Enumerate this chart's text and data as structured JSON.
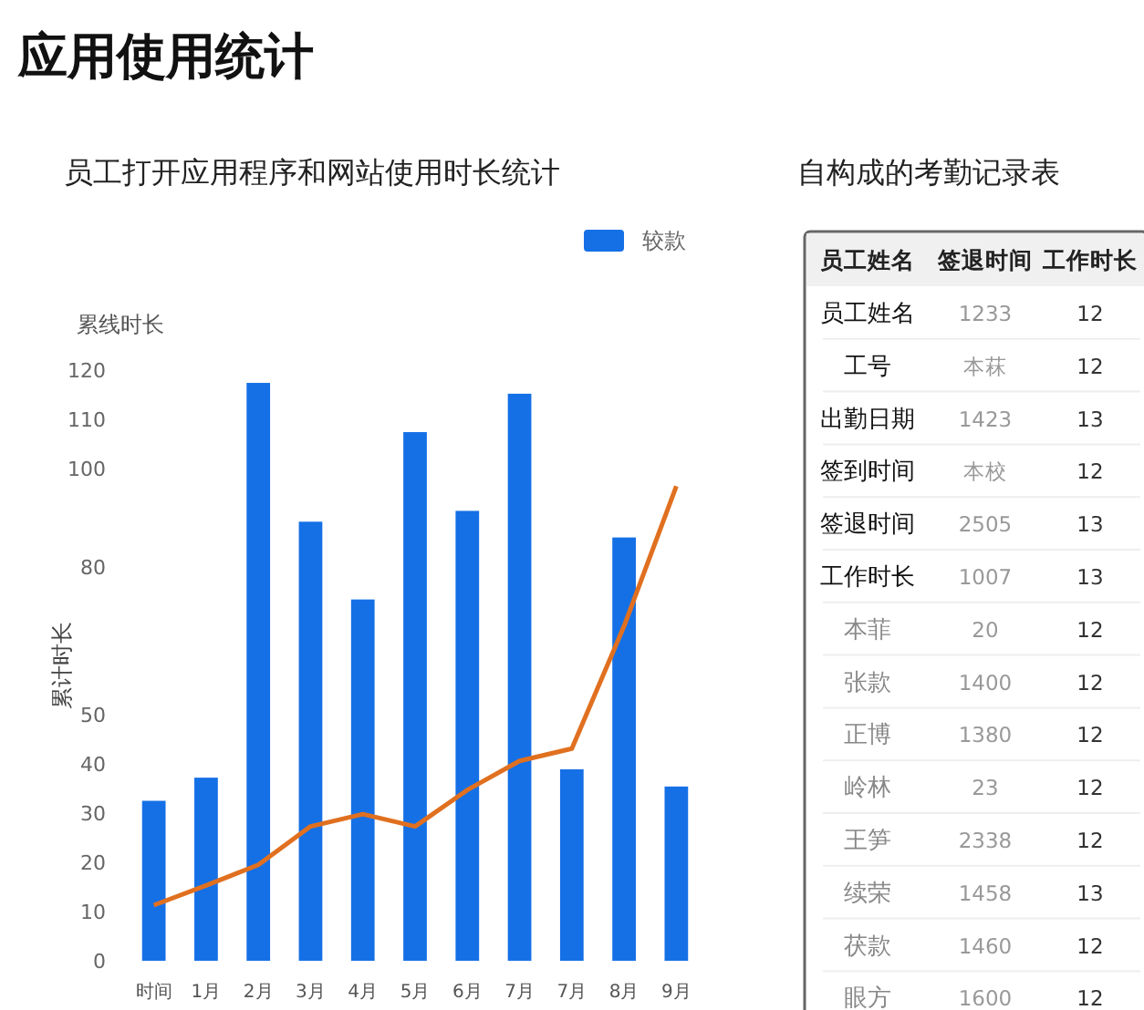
{
  "chart_data": [
    {
      "type": "bar",
      "title": "员工打开应用程序和网站使用时长统计",
      "ylabel": "累计时长",
      "annotations": [
        "应用使用统计",
        "累线时长"
      ],
      "categories": [
        "时间",
        "1月",
        "2月",
        "3月",
        "4月",
        "5月",
        "6月",
        "7月",
        "7月",
        "8月",
        "9月"
      ],
      "series": [
        {
          "name": "较款",
          "type": "bar",
          "color": "#1570e6",
          "values": [
            32.5,
            37.2,
            117.4,
            89.2,
            73.4,
            107.4,
            91.4,
            115.2,
            38.9,
            86.0,
            35.4
          ]
        },
        {
          "type": "line",
          "color": "#e07020",
          "values": [
            11.3,
            15.3,
            19.5,
            27.3,
            29.8,
            27.3,
            34.7,
            40.6,
            43.1,
            68.0,
            96.4
          ]
        }
      ],
      "ylim": [
        0,
        120
      ],
      "yticks": [
        0,
        10,
        20,
        30,
        40,
        50,
        80,
        100,
        110,
        120
      ],
      "grid": false,
      "legend": "top right",
      "marker": "none",
      "line_style": "solid"
    },
    {
      "type": "other",
      "title": "自构成的考勤记录表",
      "categories": [
        "员工姓名",
        "签退时间",
        "工作时长"
      ],
      "annotations": [
        "员工姓名",
        "1233",
        "12",
        "工号",
        "本菻",
        "12",
        "出勤日期",
        "1423",
        "13",
        "签到时间",
        "本校",
        "12",
        "签退时间",
        "2505",
        "13",
        "工作时长",
        "1007",
        "13",
        "本菲",
        "20",
        "12",
        "张款",
        "1400",
        "12",
        "正博",
        "1380",
        "12",
        "岭林",
        "23",
        "12",
        "王笋",
        "2338",
        "12",
        "续荣",
        "1458",
        "13",
        "茯款",
        "1460",
        "12",
        "眼方",
        "1600",
        "12"
      ]
    }
  ]
}
